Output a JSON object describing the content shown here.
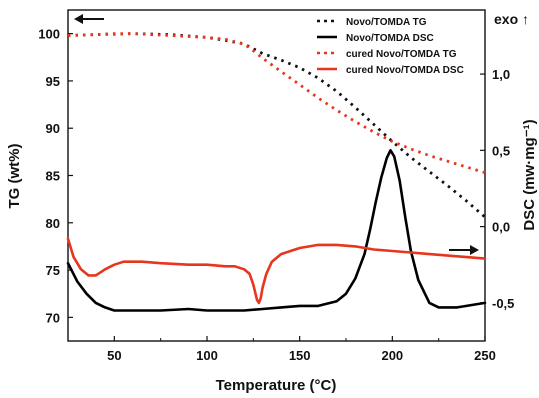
{
  "chart_data": {
    "type": "line",
    "xlabel": "Temperature (°C)",
    "ylabel_left": "TG (wt%)",
    "ylabel_right": "DSC (mw·mg⁻¹)",
    "exo_label": "exo ↑",
    "xlim": [
      25,
      250
    ],
    "ylim_left": [
      67.5,
      102.5
    ],
    "ylim_right": [
      -0.75,
      1.42
    ],
    "x_ticks": [
      50,
      100,
      150,
      200,
      250
    ],
    "y_left_ticks": [
      70,
      75,
      80,
      85,
      90,
      95,
      100
    ],
    "y_right_ticks": [
      {
        "value": -0.5,
        "label": "-0,5"
      },
      {
        "value": 0.0,
        "label": "0,0"
      },
      {
        "value": 0.5,
        "label": "0,5"
      },
      {
        "value": 1.0,
        "label": "1,0"
      }
    ],
    "legend_position": "top-right",
    "series": [
      {
        "name": "Novo/TOMDA TG",
        "axis": "left",
        "style": "dotted",
        "color": "#111111",
        "x": [
          25,
          40,
          60,
          80,
          100,
          110,
          120,
          125,
          130,
          140,
          150,
          160,
          170,
          180,
          190,
          200,
          210,
          220,
          230,
          240,
          250
        ],
        "y": [
          99.8,
          99.9,
          100.0,
          99.9,
          99.6,
          99.3,
          98.9,
          98.4,
          97.9,
          97.2,
          96.4,
          95.3,
          93.9,
          92.2,
          90.4,
          88.6,
          86.9,
          85.4,
          83.9,
          82.3,
          80.6
        ]
      },
      {
        "name": "Novo/TOMDA DSC",
        "axis": "right",
        "style": "solid",
        "color": "#000000",
        "x": [
          25,
          30,
          35,
          40,
          45,
          50,
          60,
          75,
          90,
          100,
          110,
          120,
          130,
          140,
          150,
          160,
          170,
          175,
          180,
          185,
          188,
          191,
          194,
          197,
          199,
          201,
          204,
          207,
          210,
          214,
          220,
          225,
          230,
          235,
          240,
          245,
          250
        ],
        "y": [
          -0.24,
          -0.36,
          -0.44,
          -0.5,
          -0.53,
          -0.55,
          -0.55,
          -0.55,
          -0.54,
          -0.55,
          -0.55,
          -0.55,
          -0.54,
          -0.53,
          -0.52,
          -0.52,
          -0.49,
          -0.44,
          -0.34,
          -0.18,
          -0.02,
          0.16,
          0.32,
          0.45,
          0.5,
          0.46,
          0.3,
          0.06,
          -0.16,
          -0.35,
          -0.5,
          -0.53,
          -0.53,
          -0.53,
          -0.52,
          -0.51,
          -0.5
        ]
      },
      {
        "name": "cured Novo/TOMDA TG",
        "axis": "left",
        "style": "dotted",
        "color": "#e8351e",
        "x": [
          25,
          40,
          50,
          60,
          70,
          80,
          90,
          100,
          110,
          120,
          125,
          130,
          140,
          150,
          160,
          170,
          180,
          190,
          200,
          210,
          220,
          230,
          240,
          250
        ],
        "y": [
          99.8,
          99.9,
          100.0,
          100.0,
          99.9,
          99.8,
          99.7,
          99.6,
          99.4,
          98.9,
          98.2,
          97.4,
          96.0,
          94.6,
          93.2,
          91.9,
          90.7,
          89.6,
          88.6,
          87.8,
          87.1,
          86.5,
          85.9,
          85.3
        ]
      },
      {
        "name": "cured Novo/TOMDA DSC",
        "axis": "right",
        "style": "solid",
        "color": "#e8351e",
        "x": [
          25,
          28,
          32,
          36,
          40,
          45,
          50,
          55,
          60,
          65,
          75,
          90,
          100,
          110,
          115,
          120,
          123,
          125,
          127,
          128,
          129,
          130,
          132,
          135,
          140,
          150,
          160,
          170,
          180,
          190,
          200,
          210,
          220,
          230,
          240,
          250
        ],
        "y": [
          -0.08,
          -0.2,
          -0.28,
          -0.32,
          -0.32,
          -0.28,
          -0.25,
          -0.23,
          -0.23,
          -0.23,
          -0.24,
          -0.25,
          -0.25,
          -0.26,
          -0.26,
          -0.28,
          -0.31,
          -0.38,
          -0.48,
          -0.5,
          -0.47,
          -0.4,
          -0.31,
          -0.23,
          -0.18,
          -0.14,
          -0.12,
          -0.12,
          -0.13,
          -0.15,
          -0.16,
          -0.17,
          -0.18,
          -0.19,
          -0.2,
          -0.21
        ]
      }
    ]
  }
}
